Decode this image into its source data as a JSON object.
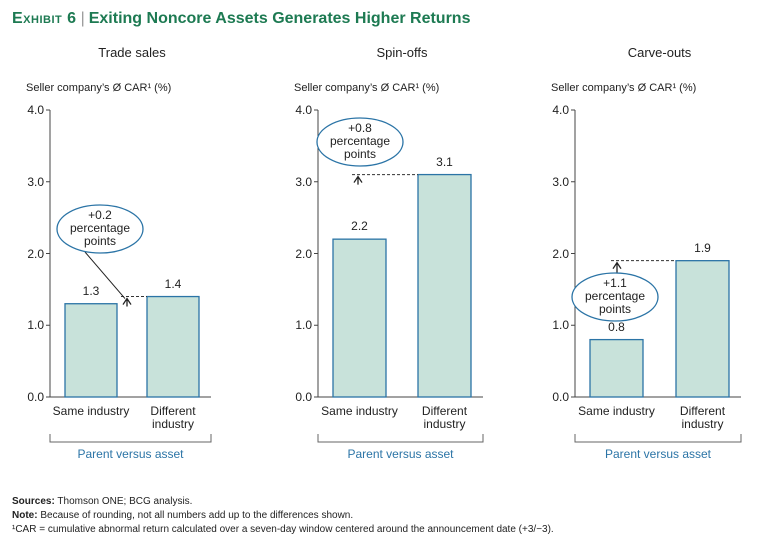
{
  "header": {
    "exhibit": "Exhibit 6",
    "title": "Exiting Noncore Assets Generates Higher Returns"
  },
  "chart_data": [
    {
      "type": "bar",
      "title": "Trade sales",
      "y_label": "Seller company’s Ø CAR¹ (%)",
      "categories": [
        "Same industry",
        "Different industry"
      ],
      "values": [
        1.3,
        1.4
      ],
      "color": "#c8e2da",
      "edge_color": "#2b74a6",
      "ylim": [
        0,
        4
      ],
      "yticks": [
        {
          "value": 0,
          "label": "0.0"
        },
        {
          "value": 1,
          "label": "1.0"
        },
        {
          "value": 2,
          "label": "2.0"
        },
        {
          "value": 3,
          "label": "3.0"
        },
        {
          "value": 4,
          "label": "4.0"
        }
      ],
      "x_label": "Parent versus asset",
      "annotation": "+0.2 percentage points"
    },
    {
      "type": "bar",
      "title": "Spin-offs",
      "y_label": "Seller company’s Ø CAR¹ (%)",
      "categories": [
        "Same industry",
        "Different industry"
      ],
      "values": [
        2.2,
        3.1
      ],
      "color": "#c8e2da",
      "edge_color": "#2b74a6",
      "ylim": [
        0,
        4
      ],
      "yticks": [
        {
          "value": 0,
          "label": "0.0"
        },
        {
          "value": 1,
          "label": "1.0"
        },
        {
          "value": 2,
          "label": "2.0"
        },
        {
          "value": 3,
          "label": "3.0"
        },
        {
          "value": 4,
          "label": "4.0"
        }
      ],
      "x_label": "Parent versus asset",
      "annotation": "+0.8 percentage points"
    },
    {
      "type": "bar",
      "title": "Carve-outs",
      "y_label": "Seller company’s Ø CAR¹ (%)",
      "categories": [
        "Same industry",
        "Different industry"
      ],
      "values": [
        0.8,
        1.9
      ],
      "color": "#c8e2da",
      "edge_color": "#2b74a6",
      "ylim": [
        0,
        4
      ],
      "yticks": [
        {
          "value": 0,
          "label": "0.0"
        },
        {
          "value": 1,
          "label": "1.0"
        },
        {
          "value": 2,
          "label": "2.0"
        },
        {
          "value": 3,
          "label": "3.0"
        },
        {
          "value": 4,
          "label": "4.0"
        }
      ],
      "x_label": "Parent versus asset",
      "annotation": "+1.1 percentage points"
    }
  ],
  "footer": {
    "sources_label": "Sources:",
    "sources": "Thomson ONE; BCG analysis.",
    "note_label": "Note:",
    "note": "Because of rounding, not all numbers add up to the differences shown.",
    "footnote": "¹CAR = cumulative abnormal return calculated over a seven-day window centered around the announcement date (+3/−3)."
  }
}
